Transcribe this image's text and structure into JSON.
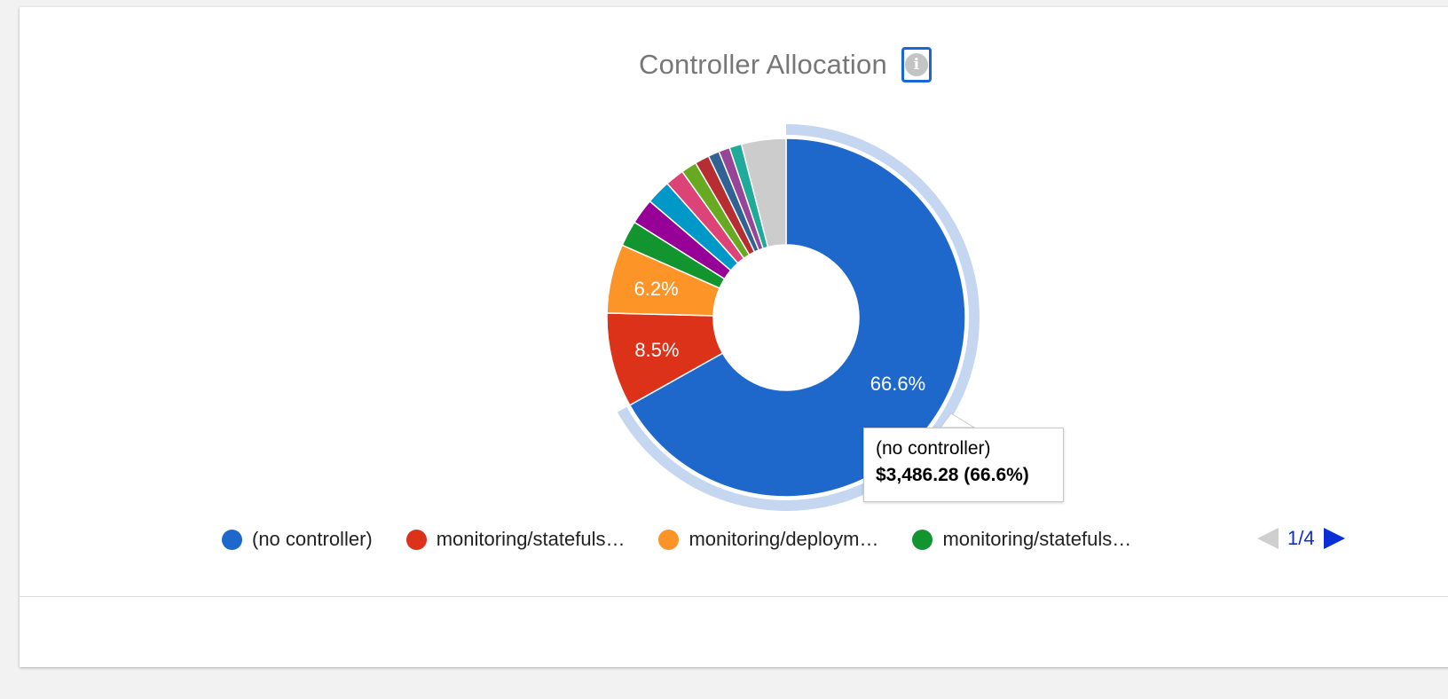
{
  "chart_data": {
    "type": "pie",
    "title": "Controller Allocation",
    "donut": true,
    "slices": [
      {
        "label": "(no controller)",
        "value": 66.6,
        "color": "#1f68cb",
        "shown_label": "66.6%"
      },
      {
        "label": "monitoring/statefuls…",
        "value": 8.5,
        "color": "#dc3219",
        "shown_label": "8.5%"
      },
      {
        "label": "monitoring/deploym…",
        "value": 6.2,
        "color": "#fd9427",
        "shown_label": "6.2%"
      },
      {
        "label": "monitoring/statefuls…",
        "value": 2.3,
        "color": "#12952f"
      },
      {
        "label": "",
        "value": 2.3,
        "color": "#970096"
      },
      {
        "label": "",
        "value": 2.2,
        "color": "#0098c7"
      },
      {
        "label": "",
        "value": 1.7,
        "color": "#dc4377"
      },
      {
        "label": "",
        "value": 1.4,
        "color": "#67a920"
      },
      {
        "label": "",
        "value": 1.3,
        "color": "#b72e32"
      },
      {
        "label": "",
        "value": 1.0,
        "color": "#316294"
      },
      {
        "label": "",
        "value": 1.0,
        "color": "#984499"
      },
      {
        "label": "",
        "value": 1.1,
        "color": "#20aa99"
      },
      {
        "label": "",
        "value": 4.0,
        "color": "#cccccc"
      }
    ],
    "highlighted_slice": 0,
    "highlight_color": "#c5d6f0"
  },
  "info_icon": {
    "name": "info-icon",
    "glyph": "i"
  },
  "tooltip": {
    "label": "(no controller)",
    "value": "$3,486.28 (66.6%)"
  },
  "legend": {
    "items": [
      {
        "label": "(no controller)",
        "color": "#1f68cb"
      },
      {
        "label": "monitoring/statefuls…",
        "color": "#dc3219"
      },
      {
        "label": "monitoring/deploym…",
        "color": "#fd9427"
      },
      {
        "label": "monitoring/statefuls…",
        "color": "#12952f"
      }
    ],
    "pager": "1/4"
  }
}
